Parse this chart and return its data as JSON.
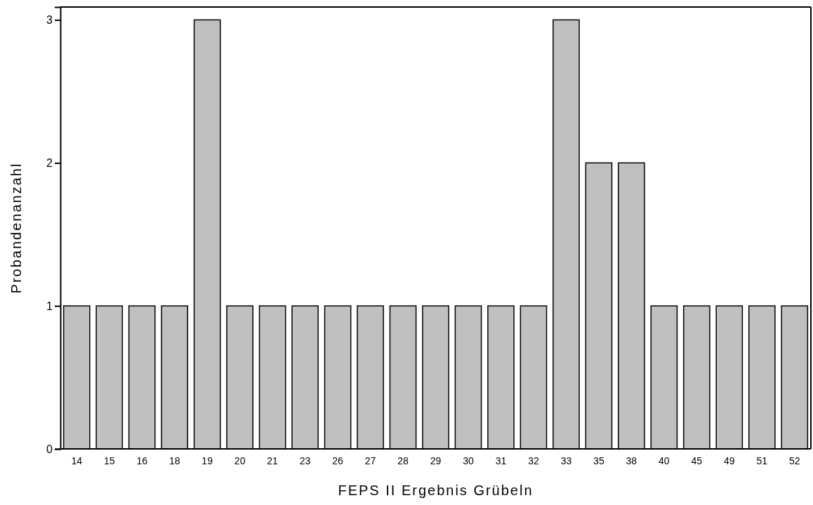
{
  "chart_data": {
    "type": "bar",
    "xlabel": "FEPS II Ergebnis Grübeln",
    "ylabel": "Probandenanzahl",
    "categories": [
      "14",
      "15",
      "16",
      "18",
      "19",
      "20",
      "21",
      "23",
      "26",
      "27",
      "28",
      "29",
      "30",
      "31",
      "32",
      "33",
      "35",
      "38",
      "40",
      "45",
      "49",
      "51",
      "52"
    ],
    "values": [
      1,
      1,
      1,
      1,
      3,
      1,
      1,
      1,
      1,
      1,
      1,
      1,
      1,
      1,
      1,
      3,
      2,
      2,
      1,
      1,
      1,
      1,
      1
    ],
    "color": "#c0c0c0",
    "ylim": [
      0,
      3.09
    ],
    "yticks": [
      0,
      1,
      2,
      3
    ],
    "grid": false
  }
}
